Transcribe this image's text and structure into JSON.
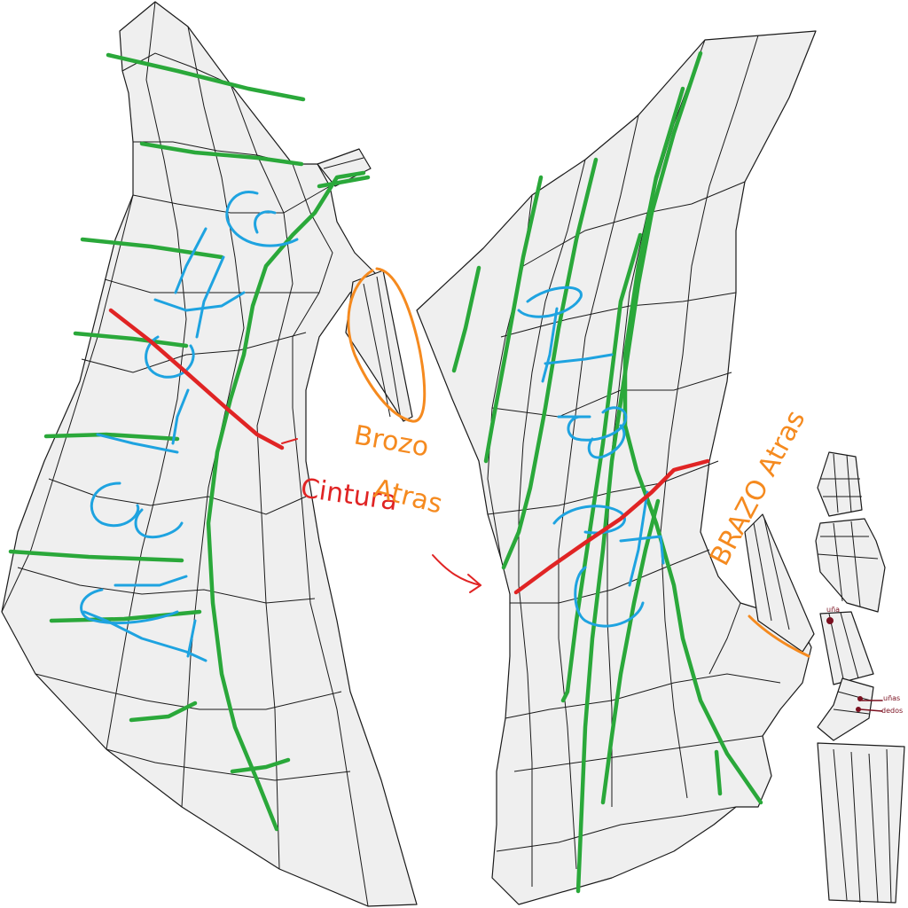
{
  "labels": {
    "cintura": "Cintura",
    "brazo_atras": [
      "Brozo",
      "Atras"
    ],
    "brazo_atras_right": "BRAZO Atras",
    "una": "uña",
    "unas_dedos": [
      "uñas",
      "dedos"
    ]
  },
  "colors": {
    "mesh_fill": "#efefef",
    "mesh_stroke": "#1a1a1a",
    "green": "#2aa83a",
    "blue": "#1ea3e0",
    "red": "#e02424",
    "orange": "#f58a1f",
    "maroon": "#7a0f1f"
  },
  "icons": [
    "arrow-icon"
  ]
}
